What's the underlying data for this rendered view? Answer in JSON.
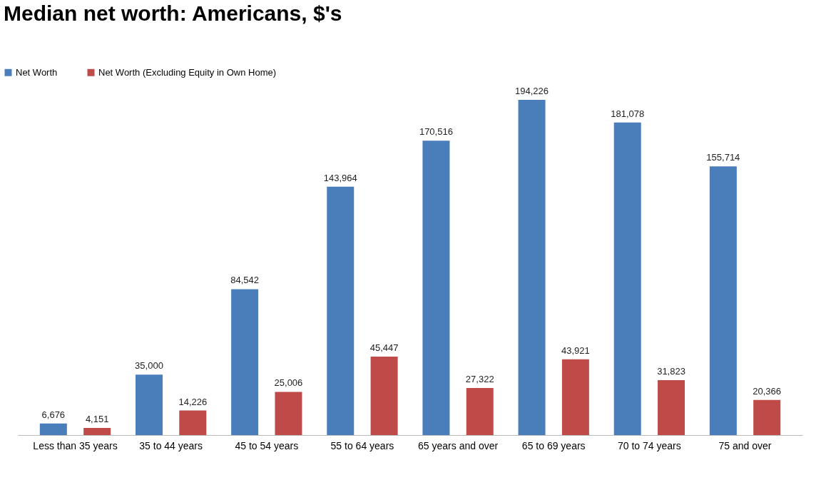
{
  "chart_data": {
    "type": "bar",
    "title": "Median net worth: Americans, $'s",
    "categories": [
      "Less than 35 years",
      "35 to 44  years",
      "45 to 54  years",
      "55 to 64  years",
      "65 years and over",
      "65 to 69 years",
      "70 to 74  years",
      "75 and over"
    ],
    "series": [
      {
        "name": "Net Worth",
        "color": "#4a7ebb",
        "values": [
          6676,
          35000,
          84542,
          143964,
          170516,
          194226,
          181078,
          155714
        ],
        "value_labels": [
          "6,676",
          "35,000",
          "84,542",
          "143,964",
          "170,516",
          "194,226",
          "181,078",
          "155,714"
        ]
      },
      {
        "name": "Net Worth (Excluding Equity in Own Home)",
        "color": "#be4b48",
        "values": [
          4151,
          14226,
          25006,
          45447,
          27322,
          43921,
          31823,
          20366
        ],
        "value_labels": [
          "4,151",
          "14,226",
          "25,006",
          "45,447",
          "27,322",
          "43,921",
          "31,823",
          "20,366"
        ]
      }
    ],
    "grid": false,
    "legend": "top left",
    "tick_labels": "x"
  }
}
